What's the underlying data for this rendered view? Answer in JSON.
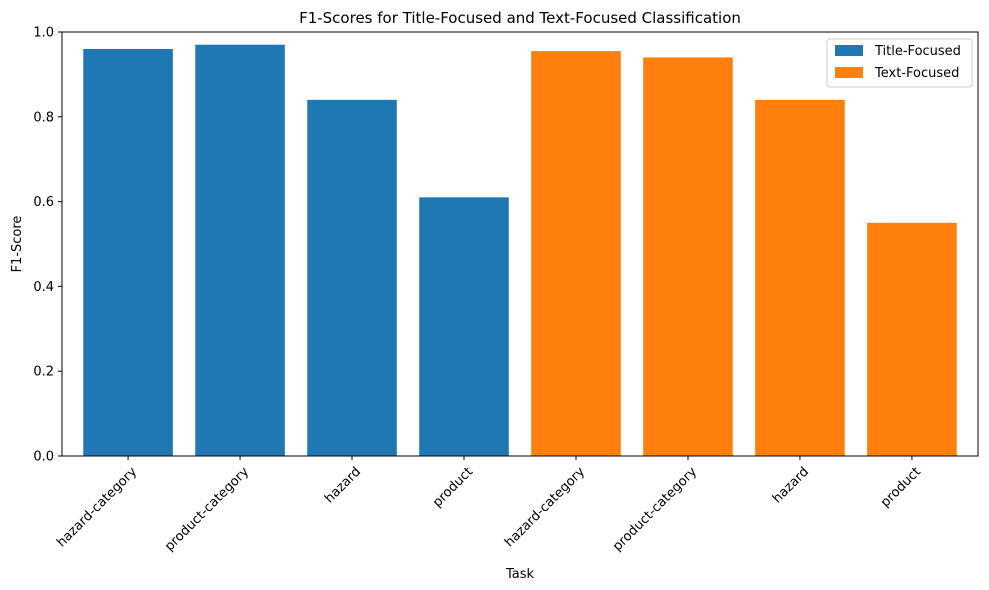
{
  "chart_data": {
    "type": "bar",
    "title": "F1-Scores for Title-Focused and Text-Focused Classification",
    "xlabel": "Task",
    "ylabel": "F1-Score",
    "ylim": [
      0,
      1.0
    ],
    "yticks": [
      "0.0",
      "0.2",
      "0.4",
      "0.6",
      "0.8",
      "1.0"
    ],
    "grid": false,
    "legend_position": "top-right",
    "categories": [
      "hazard-category",
      "product-category",
      "hazard",
      "product",
      "hazard-category",
      "product-category",
      "hazard",
      "product"
    ],
    "series": [
      {
        "name": "Title-Focused",
        "color": "#1f77b4",
        "values": [
          0.96,
          0.97,
          0.84,
          0.61,
          null,
          null,
          null,
          null
        ]
      },
      {
        "name": "Text-Focused",
        "color": "#ff7f0e",
        "values": [
          null,
          null,
          null,
          null,
          0.955,
          0.94,
          0.84,
          0.55
        ]
      }
    ]
  }
}
